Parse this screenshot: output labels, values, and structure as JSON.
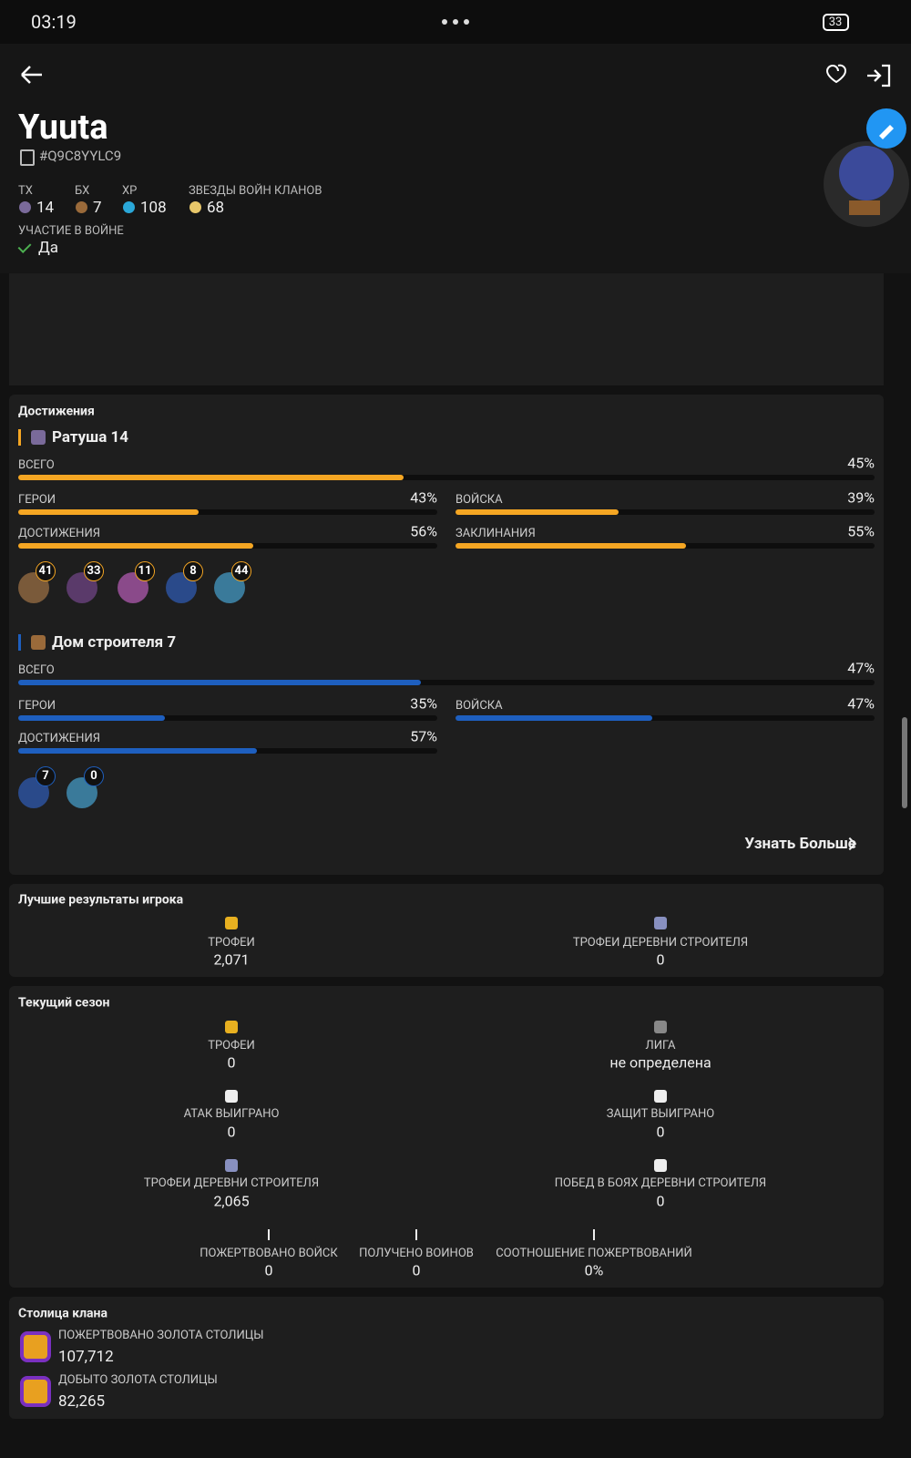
{
  "status_bar": {
    "time": "03:19",
    "battery": "33"
  },
  "profile": {
    "name": "Yuuta",
    "tag": "#Q9C8YYLC9",
    "stats": [
      {
        "label": "TX",
        "value": "14"
      },
      {
        "label": "БХ",
        "value": "7"
      },
      {
        "label": "XP",
        "value": "108"
      },
      {
        "label": "ЗВЕЗДЫ ВОЙН КЛАНОВ",
        "value": "68"
      }
    ],
    "war_label": "УЧАСТИЕ В ВОЙНЕ",
    "war_value": "Да"
  },
  "achievements": {
    "title": "Достижения",
    "sections": [
      {
        "title": "Ратуша 14",
        "color": "#f5a623",
        "bars": [
          {
            "label": "ВСЕГО",
            "value": 45,
            "value_label": "45%"
          },
          {
            "label": "ГЕРОИ",
            "value": 43,
            "value_label": "43%"
          },
          {
            "label": "ВОЙСКА",
            "value": 39,
            "value_label": "39%"
          },
          {
            "label": "ДОСТИЖЕНИЯ",
            "value": 56,
            "value_label": "56%"
          },
          {
            "label": "ЗАКЛИНАНИЯ",
            "value": 55,
            "value_label": "55%"
          }
        ],
        "heroes": [
          "41",
          "33",
          "11",
          "8",
          "44"
        ]
      },
      {
        "title": "Дом строителя 7",
        "color": "#1e5fbf",
        "bars": [
          {
            "label": "ВСЕГО",
            "value": 47,
            "value_label": "47%"
          },
          {
            "label": "ГЕРОИ",
            "value": 35,
            "value_label": "35%"
          },
          {
            "label": "ВОЙСКА",
            "value": 47,
            "value_label": "47%"
          },
          {
            "label": "ДОСТИЖЕНИЯ",
            "value": 57,
            "value_label": "57%"
          }
        ],
        "heroes": [
          "7",
          "0"
        ]
      }
    ],
    "more": "Узнать Больше"
  },
  "best": {
    "title": "Лучшие результаты игрока",
    "items": [
      {
        "label": "ТРОФЕИ",
        "value": "2,071"
      },
      {
        "label": "ТРОФЕИ ДЕРЕВНИ СТРОИТЕЛЯ",
        "value": "0"
      }
    ]
  },
  "season": {
    "title": "Текущий сезон",
    "items": [
      {
        "label": "ТРОФЕИ",
        "value": "0"
      },
      {
        "label": "ЛИГА",
        "value": "не определена"
      },
      {
        "label": "АТАК ВЫИГРАНО",
        "value": "0"
      },
      {
        "label": "ЗАЩИТ ВЫИГРАНО",
        "value": "0"
      },
      {
        "label": "ТРОФЕИ ДЕРЕВНИ СТРОИТЕЛЯ",
        "value": "2,065"
      },
      {
        "label": "ПОБЕД В БОЯХ ДЕРЕВНИ СТРОИТЕЛЯ",
        "value": "0"
      }
    ],
    "donations": [
      {
        "label": "ПОЖЕРТВОВАНО ВОЙСК",
        "value": "0"
      },
      {
        "label": "ПОЛУЧЕНО ВОИНОВ",
        "value": "0"
      },
      {
        "label": "СООТНОШЕНИЕ ПОЖЕРТВОВАНИЙ",
        "value": "0%"
      }
    ]
  },
  "capital": {
    "title": "Столица клана",
    "items": [
      {
        "label": "ПОЖЕРТВОВАНО ЗОЛОТА СТОЛИЦЫ",
        "value": "107,712"
      },
      {
        "label": "ДОБЫТО ЗОЛОТА СТОЛИЦЫ",
        "value": "82,265"
      }
    ]
  }
}
